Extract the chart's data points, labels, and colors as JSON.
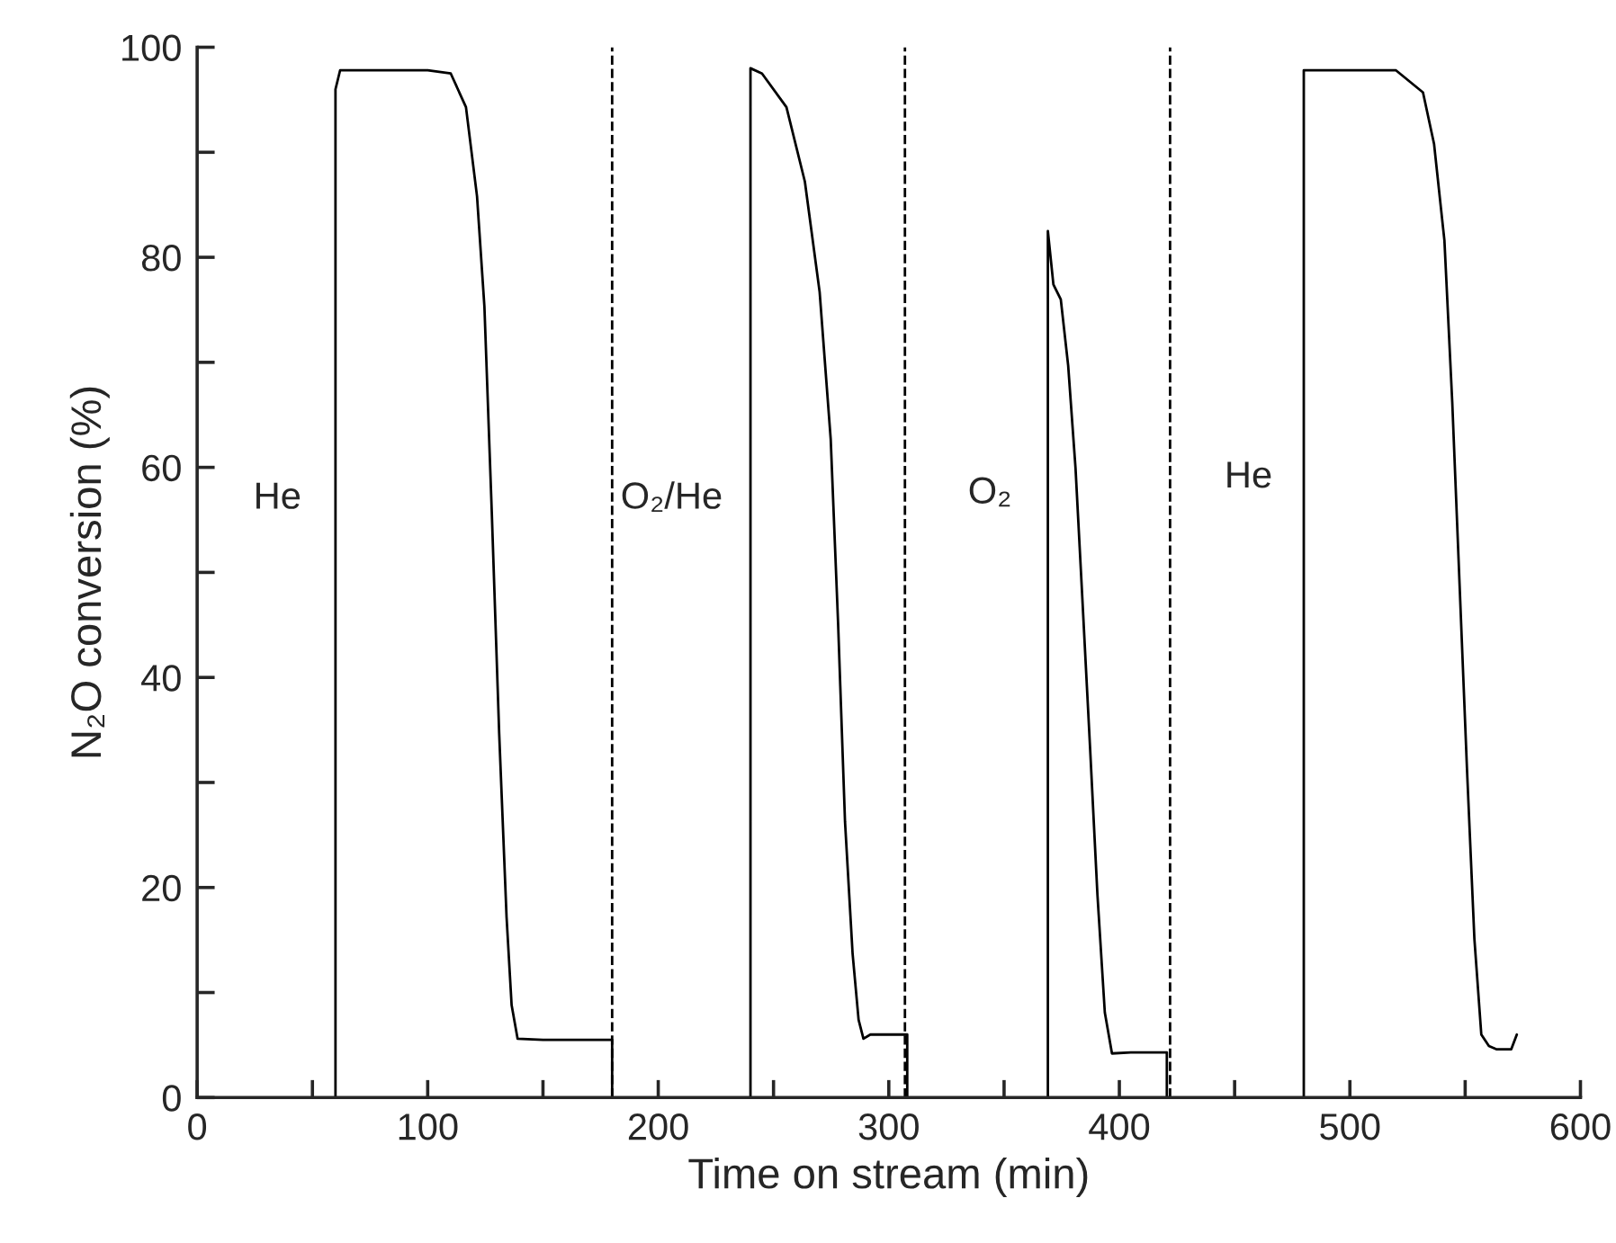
{
  "chart_data": {
    "type": "line",
    "xlabel": "Time on stream (min)",
    "ylabel": "N₂O conversion (%)",
    "xlim": [
      0,
      600
    ],
    "ylim": [
      0,
      100
    ],
    "xticks": [
      0,
      {
        "value": 50,
        "label": null
      },
      100,
      {
        "value": 150,
        "label": null
      },
      200,
      {
        "value": 250,
        "label": null
      },
      300,
      {
        "value": 350,
        "label": null
      },
      400,
      {
        "value": 450,
        "label": null
      },
      500,
      {
        "value": 550,
        "label": null
      },
      600
    ],
    "yticks": [
      0,
      {
        "value": 10,
        "label": null
      },
      20,
      {
        "value": 30,
        "label": null
      },
      40,
      {
        "value": 50,
        "label": null
      },
      60,
      {
        "value": 70,
        "label": null
      },
      80,
      {
        "value": 90,
        "label": null
      },
      100
    ],
    "grid": false,
    "legend": false,
    "marker": "none",
    "line_style": "solid",
    "series": [
      {
        "color": "#000000",
        "x": [
          60,
          60,
          62,
          80,
          100,
          110,
          116.6,
          121.4,
          124.6,
          127.8,
          131,
          134.2,
          136.4,
          139,
          150,
          170,
          180,
          180
        ],
        "values": [
          0,
          96,
          97.8,
          97.8,
          97.8,
          97.5,
          94.3,
          85.8,
          75.3,
          55.7,
          34.7,
          17.2,
          8.8,
          5.6,
          5.5,
          5.5,
          5.5,
          0
        ]
      },
      {
        "color": "#000000",
        "x": [
          240,
          240,
          245,
          255.6,
          263.6,
          270,
          274.8,
          278,
          281,
          284.3,
          286.9,
          289,
          292,
          300,
          308,
          308
        ],
        "values": [
          0,
          98,
          97.5,
          94.3,
          87.2,
          76.7,
          62.7,
          45.2,
          26.3,
          13.7,
          7.4,
          5.6,
          6,
          6,
          6,
          0
        ]
      },
      {
        "color": "#000000",
        "x": [
          369,
          369,
          371.4,
          374.6,
          377.8,
          381,
          384,
          387.3,
          390.5,
          393.7,
          396.8,
          405,
          420.6,
          420.6
        ],
        "values": [
          0,
          82.5,
          77.4,
          76,
          69.7,
          59.9,
          47.3,
          33.3,
          19.3,
          8.1,
          4.2,
          4.3,
          4.3,
          0
        ]
      },
      {
        "color": "#000000",
        "x": [
          480,
          480,
          482,
          500,
          520,
          531.7,
          536.5,
          541,
          544.4,
          547.6,
          550.8,
          554,
          557,
          560.3,
          563.5,
          570,
          572.4
        ],
        "values": [
          0,
          97.8,
          97.8,
          97.8,
          97.8,
          95.7,
          90.8,
          81.6,
          66.2,
          48.7,
          31.2,
          15.1,
          6,
          4.9,
          4.6,
          4.6,
          6
        ]
      }
    ],
    "ref_lines": [
      {
        "axis": "x",
        "value": 180,
        "line_style": "dashed",
        "color": "#000000"
      },
      {
        "axis": "x",
        "value": 307,
        "line_style": "dashed",
        "color": "#000000"
      },
      {
        "axis": "x",
        "value": 422,
        "line_style": "dashed",
        "color": "#000000"
      }
    ],
    "annotations": [
      "He",
      "O₂/He",
      "O₂",
      "He"
    ]
  }
}
